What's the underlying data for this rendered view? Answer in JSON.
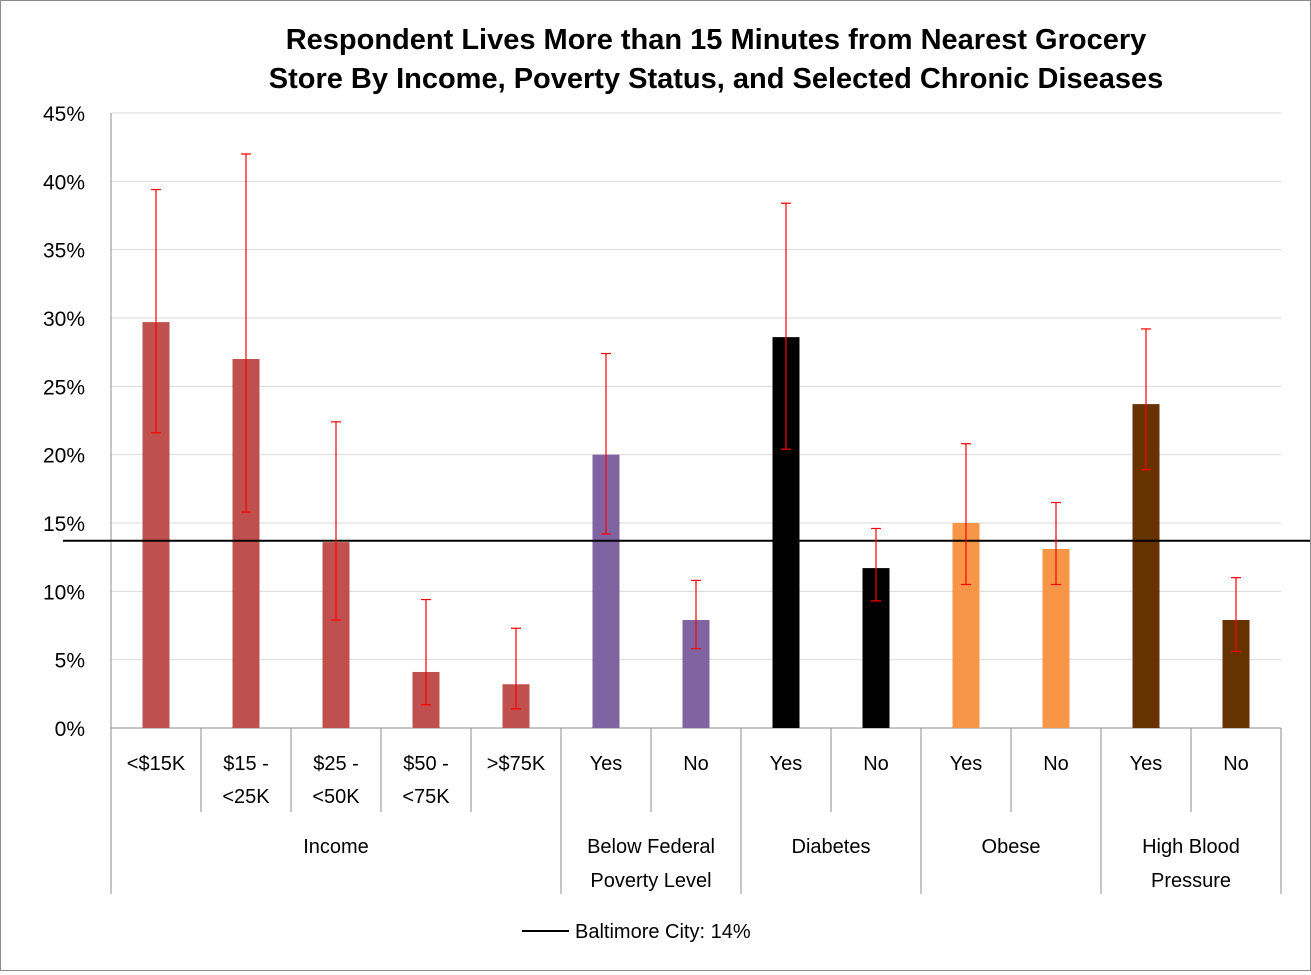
{
  "chart_data": {
    "type": "bar",
    "title": [
      "Respondent Lives More than 15 Minutes from Nearest Grocery",
      "Store By Income, Poverty Status, and Selected Chronic Diseases"
    ],
    "ylim": [
      0,
      45
    ],
    "yticks": [
      "0%",
      "5%",
      "10%",
      "15%",
      "20%",
      "25%",
      "30%",
      "35%",
      "40%",
      "45%"
    ],
    "grid": true,
    "categories": [
      {
        "label": [
          "<$15K"
        ],
        "group": 0,
        "value": 29.7,
        "err_low": 21.6,
        "err_high": 39.4,
        "color": "#c0504d"
      },
      {
        "label": [
          "$15 -",
          "<25K"
        ],
        "group": 0,
        "value": 27.0,
        "err_low": 15.8,
        "err_high": 42.0,
        "color": "#c0504d"
      },
      {
        "label": [
          "$25 -",
          "<50K"
        ],
        "group": 0,
        "value": 13.6,
        "err_low": 7.9,
        "err_high": 22.4,
        "color": "#c0504d"
      },
      {
        "label": [
          "$50 -",
          "<75K"
        ],
        "group": 0,
        "value": 4.1,
        "err_low": 1.7,
        "err_high": 9.4,
        "color": "#c0504d"
      },
      {
        "label": [
          ">$75K"
        ],
        "group": 0,
        "value": 3.2,
        "err_low": 1.4,
        "err_high": 7.3,
        "color": "#c0504d"
      },
      {
        "label": [
          "Yes"
        ],
        "group": 1,
        "value": 20.0,
        "err_low": 14.2,
        "err_high": 27.4,
        "color": "#8064a2"
      },
      {
        "label": [
          "No"
        ],
        "group": 1,
        "value": 7.9,
        "err_low": 5.8,
        "err_high": 10.8,
        "color": "#8064a2"
      },
      {
        "label": [
          "Yes"
        ],
        "group": 2,
        "value": 28.6,
        "err_low": 20.4,
        "err_high": 38.4,
        "color": "#000000"
      },
      {
        "label": [
          "No"
        ],
        "group": 2,
        "value": 11.7,
        "err_low": 9.3,
        "err_high": 14.6,
        "color": "#000000"
      },
      {
        "label": [
          "Yes"
        ],
        "group": 3,
        "value": 15.0,
        "err_low": 10.5,
        "err_high": 20.8,
        "color": "#f79646"
      },
      {
        "label": [
          "No"
        ],
        "group": 3,
        "value": 13.1,
        "err_low": 10.5,
        "err_high": 16.5,
        "color": "#f79646"
      },
      {
        "label": [
          "Yes"
        ],
        "group": 4,
        "value": 23.7,
        "err_low": 18.9,
        "err_high": 29.2,
        "color": "#663300"
      },
      {
        "label": [
          "No"
        ],
        "group": 4,
        "value": 7.9,
        "err_low": 5.6,
        "err_high": 11.0,
        "color": "#663300"
      }
    ],
    "groups": [
      {
        "label": [
          "Income"
        ],
        "start": 0,
        "end": 5
      },
      {
        "label": [
          "Below Federal",
          "Poverty Level"
        ],
        "start": 5,
        "end": 7
      },
      {
        "label": [
          "Diabetes"
        ],
        "start": 7,
        "end": 9
      },
      {
        "label": [
          "Obese"
        ],
        "start": 9,
        "end": 11
      },
      {
        "label": [
          "High Blood",
          "Pressure"
        ],
        "start": 11,
        "end": 13
      }
    ],
    "reference_line": {
      "value": 13.7,
      "color": "#000000"
    },
    "legend": {
      "entries": [
        "Baltimore City: 14%"
      ],
      "placement": "bottom"
    },
    "error_bar_color": "#ff0000",
    "grid_color": "#d9d9d9"
  }
}
